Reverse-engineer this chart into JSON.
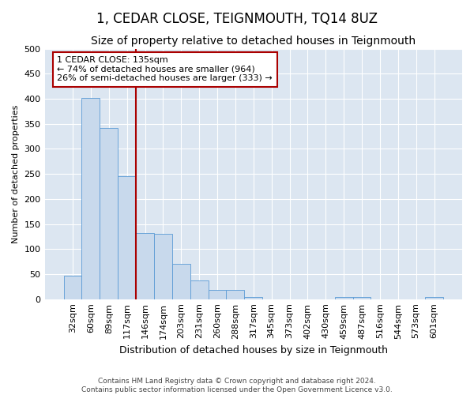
{
  "title": "1, CEDAR CLOSE, TEIGNMOUTH, TQ14 8UZ",
  "subtitle": "Size of property relative to detached houses in Teignmouth",
  "xlabel": "Distribution of detached houses by size in Teignmouth",
  "ylabel": "Number of detached properties",
  "footer_line1": "Contains HM Land Registry data © Crown copyright and database right 2024.",
  "footer_line2": "Contains public sector information licensed under the Open Government Licence v3.0.",
  "bar_color": "#c8d9ec",
  "bar_edge_color": "#5b9bd5",
  "vline_color": "#aa0000",
  "vline_x_index": 3.5,
  "annotation_text": "1 CEDAR CLOSE: 135sqm\n← 74% of detached houses are smaller (964)\n26% of semi-detached houses are larger (333) →",
  "annotation_box_edge_color": "#aa0000",
  "background_color": "#dce6f1",
  "categories": [
    "32sqm",
    "60sqm",
    "89sqm",
    "117sqm",
    "146sqm",
    "174sqm",
    "203sqm",
    "231sqm",
    "260sqm",
    "288sqm",
    "317sqm",
    "345sqm",
    "373sqm",
    "402sqm",
    "430sqm",
    "459sqm",
    "487sqm",
    "516sqm",
    "544sqm",
    "573sqm",
    "601sqm"
  ],
  "values": [
    47,
    402,
    341,
    246,
    132,
    130,
    70,
    37,
    18,
    18,
    5,
    0,
    0,
    0,
    0,
    5,
    5,
    0,
    0,
    0,
    5
  ],
  "ylim": [
    0,
    500
  ],
  "yticks": [
    0,
    50,
    100,
    150,
    200,
    250,
    300,
    350,
    400,
    450,
    500
  ],
  "grid_color": "#ffffff",
  "title_fontsize": 12,
  "subtitle_fontsize": 10,
  "ylabel_fontsize": 8,
  "xlabel_fontsize": 9,
  "tick_fontsize": 8,
  "footer_fontsize": 6.5
}
